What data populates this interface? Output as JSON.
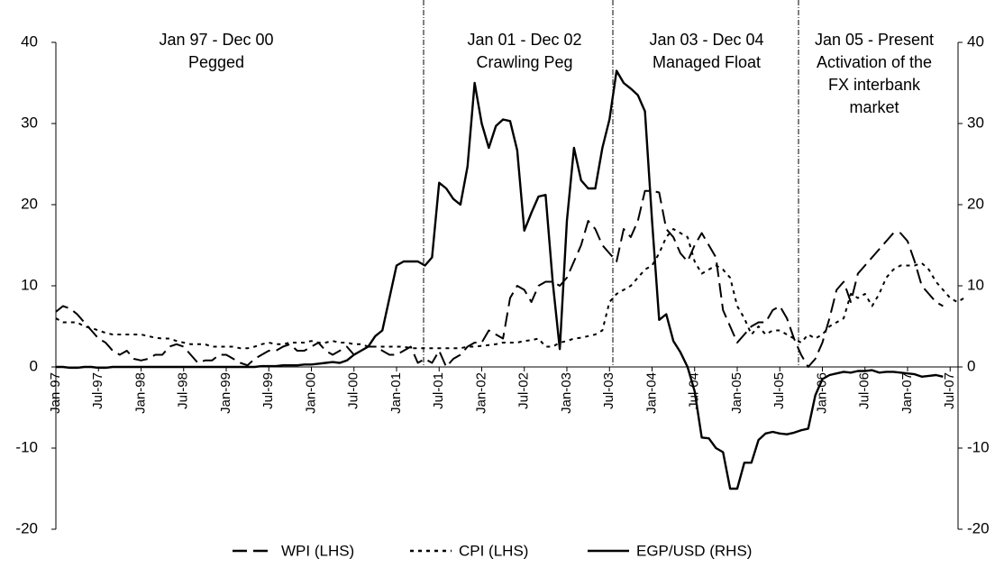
{
  "chart_data": {
    "type": "line",
    "categories": [
      "Jan-97",
      null,
      null,
      null,
      null,
      null,
      "Jul-97",
      null,
      null,
      null,
      null,
      null,
      "Jan-98",
      null,
      null,
      null,
      null,
      null,
      "Jul-98",
      null,
      null,
      null,
      null,
      null,
      "Jan-99",
      null,
      null,
      null,
      null,
      null,
      "Jul-99",
      null,
      null,
      null,
      null,
      null,
      "Jan-00",
      null,
      null,
      null,
      null,
      null,
      "Jul-00",
      null,
      null,
      null,
      null,
      null,
      "Jan-01",
      null,
      null,
      null,
      null,
      null,
      "Jul-01",
      null,
      null,
      null,
      null,
      null,
      "Jan-02",
      null,
      null,
      null,
      null,
      null,
      "Jul-02",
      null,
      null,
      null,
      null,
      null,
      "Jan-03",
      null,
      null,
      null,
      null,
      null,
      "Jul-03",
      null,
      null,
      null,
      null,
      null,
      "Jan-04",
      null,
      null,
      null,
      null,
      null,
      "Jul-04",
      null,
      null,
      null,
      null,
      null,
      "Jan-05",
      null,
      null,
      null,
      null,
      null,
      "Jul-05",
      null,
      null,
      null,
      null,
      null,
      "Jan-06",
      null,
      null,
      null,
      null,
      null,
      "Jul-06",
      null,
      null,
      null,
      null,
      null,
      "Jan-07",
      null,
      null,
      null,
      null,
      null,
      "Jul-07",
      null,
      null
    ],
    "series": [
      {
        "name": "WPI (LHS)",
        "color": "#000000",
        "line_style": "dashed",
        "values": [
          6.8,
          7.5,
          7.2,
          6.5,
          5.5,
          4.5,
          3.5,
          3,
          2,
          1.5,
          2,
          1,
          0.8,
          1,
          1.5,
          1.5,
          2.5,
          2.8,
          2.5,
          1.5,
          0.5,
          0.8,
          0.8,
          1.5,
          1.5,
          1,
          0.5,
          0.2,
          1,
          1.5,
          2,
          2,
          2.5,
          2.8,
          2,
          2,
          2.5,
          3,
          2,
          1.5,
          2,
          2.5,
          1.5,
          2,
          2.5,
          2.5,
          2,
          1.5,
          1.5,
          2,
          2.5,
          0.5,
          1,
          0.5,
          2,
          0,
          1,
          1.5,
          2.5,
          3,
          3,
          4.5,
          4,
          3.5,
          8.5,
          10,
          9.5,
          8,
          10,
          10.5,
          10.5,
          10,
          11,
          13,
          15,
          18,
          17,
          15,
          14,
          13,
          17,
          16,
          18,
          21.7,
          21.7,
          21.5,
          17,
          16,
          14,
          13,
          15,
          16.5,
          15,
          13.5,
          7,
          5,
          3,
          4,
          5,
          5.5,
          5.5,
          7,
          7.5,
          6,
          3.5,
          1.5,
          0,
          1,
          3,
          6,
          9.5,
          10.5,
          8,
          11.5,
          12.5,
          13.5,
          14.5,
          15.5,
          16.5,
          16.5,
          15.5,
          13,
          10,
          9,
          8,
          7.5,
          null,
          null,
          null
        ]
      },
      {
        "name": "CPI (LHS)",
        "color": "#000000",
        "line_style": "dotted",
        "values": [
          6,
          5.5,
          5.5,
          5.5,
          5,
          4.8,
          4.5,
          4.2,
          4,
          4,
          4,
          4,
          4,
          3.8,
          3.6,
          3.5,
          3.5,
          3.2,
          3,
          2.8,
          2.8,
          2.8,
          2.5,
          2.5,
          2.5,
          2.5,
          2.3,
          2.3,
          2.5,
          2.8,
          3,
          2.8,
          2.8,
          3,
          3,
          3,
          3.2,
          3,
          3,
          3.2,
          3,
          3,
          2.8,
          2.8,
          2.5,
          2.5,
          2.5,
          2.5,
          2.5,
          2.5,
          2.3,
          2.3,
          2.3,
          2.3,
          2.3,
          2.3,
          2.3,
          2.3,
          2.5,
          2.5,
          2.6,
          2.7,
          2.8,
          3,
          3,
          3,
          3.2,
          3.3,
          3.5,
          2.5,
          2.5,
          3,
          3.2,
          3.5,
          3.6,
          3.8,
          4,
          4.5,
          8,
          9,
          9.5,
          10,
          11,
          12,
          12.5,
          14,
          16,
          17,
          16.5,
          16,
          13,
          11.5,
          12,
          12.5,
          12,
          11,
          7.5,
          6,
          4,
          5,
          4,
          4.5,
          4.5,
          4,
          3.5,
          3,
          4,
          3.5,
          4,
          5,
          5.5,
          6,
          9,
          8.5,
          9,
          7.5,
          9,
          11,
          12,
          12.5,
          12.5,
          12.5,
          12.8,
          12,
          10.5,
          9.5,
          8.5,
          8,
          8.5
        ]
      },
      {
        "name": "EGP/USD (RHS)",
        "color": "#000000",
        "line_style": "solid",
        "axis": "y2",
        "values": [
          0,
          0,
          -0.1,
          -0.1,
          0,
          0,
          -0.1,
          -0.1,
          0,
          0,
          0,
          0,
          0,
          0,
          0,
          0,
          0,
          0,
          0,
          0,
          0,
          0,
          0,
          0,
          0,
          0,
          0,
          0,
          0,
          0.1,
          0.1,
          0.1,
          0.2,
          0.2,
          0.2,
          0.3,
          0.3,
          0.4,
          0.5,
          0.6,
          0.5,
          0.8,
          1.5,
          2,
          2.5,
          3.8,
          4.5,
          8.5,
          12.5,
          13,
          13,
          13,
          12.5,
          13.5,
          22.7,
          22,
          20.7,
          20,
          24.7,
          35,
          30,
          27,
          29.7,
          30.5,
          30.3,
          26.7,
          16.8,
          19,
          21,
          21.2,
          10.5,
          2.2,
          18,
          27,
          23,
          22,
          22,
          27,
          30.5,
          36.5,
          35,
          34.3,
          33.5,
          31.5,
          18,
          5.8,
          6.5,
          3.2,
          1.8,
          0,
          -3,
          -8.7,
          -8.8,
          -10,
          -10.5,
          -15,
          -15,
          -11.8,
          -11.8,
          -9,
          -8.2,
          -8,
          -8.2,
          -8.3,
          -8.1,
          -7.8,
          -7.6,
          -3.5,
          -1.5,
          -1,
          -0.8,
          -0.6,
          -0.7,
          -0.5,
          -0.5,
          -0.4,
          -0.7,
          -0.6,
          -0.6,
          -0.7,
          -0.8,
          -0.9,
          -1.2,
          -1.1,
          -1,
          -1.2,
          null,
          null,
          null
        ]
      }
    ],
    "ylim": [
      -20,
      40
    ],
    "yticks": [
      -20,
      -10,
      0,
      10,
      20,
      30,
      40
    ],
    "y2lim": [
      -20,
      40
    ],
    "y2ticks": [
      -20,
      -10,
      0,
      10,
      20,
      30,
      40
    ],
    "annotations": [
      [
        "Jan 97 - Dec 00",
        "Pegged"
      ],
      [
        "Jan 01 - Dec 02",
        "Crawling Peg"
      ],
      [
        "Jan 03 - Dec 04",
        "Managed Float"
      ],
      [
        "Jan 05 - Present",
        "Activation of the",
        "FX interbank",
        "market"
      ]
    ],
    "legend": "bottom"
  }
}
